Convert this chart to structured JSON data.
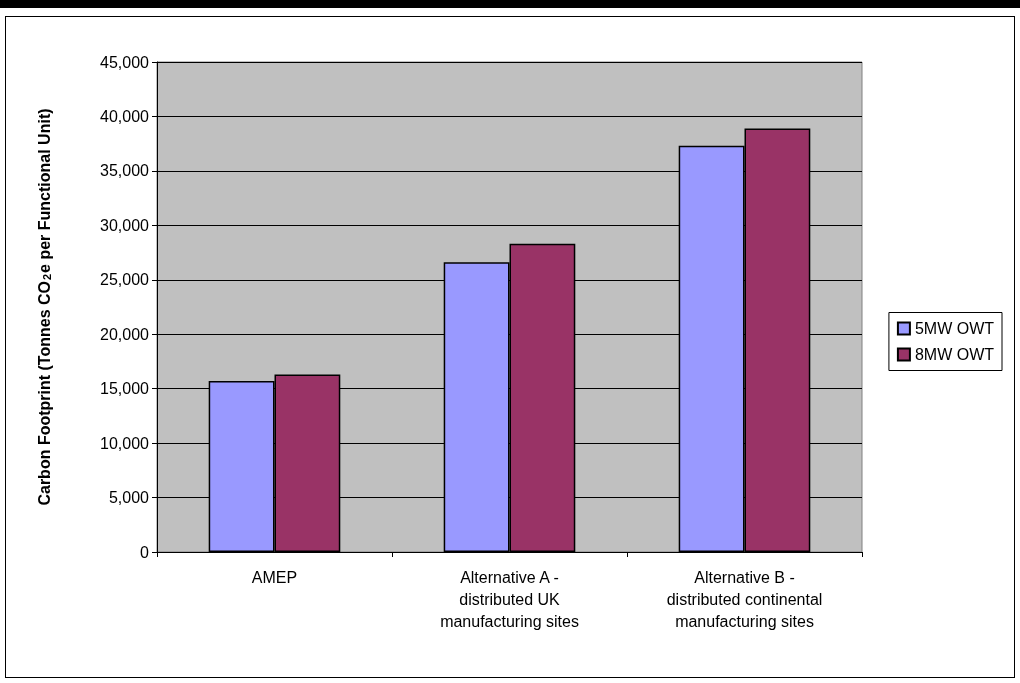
{
  "chart_data": {
    "type": "bar",
    "ylabel": "Carbon Footprint (Tonnes CO$_{2}$e per Functional Unit)",
    "categories": [
      "AMEP",
      "Alternative A -\ndistributed UK\nmanufacturing sites",
      "Alternative B -\ndistributed continental\nmanufacturing sites"
    ],
    "series": [
      {
        "name": "5MW OWT",
        "color": "#9999ff",
        "values": [
          15700,
          26600,
          37300
        ]
      },
      {
        "name": "8MW OWT",
        "color": "#993366",
        "values": [
          16300,
          28300,
          38900
        ]
      }
    ],
    "ylim": [
      0,
      45000
    ],
    "yticks": [
      0,
      {
        "value": 5000,
        "label": "5,000"
      },
      {
        "value": 10000,
        "label": "10,000"
      },
      {
        "value": 15000,
        "label": "15,000"
      },
      {
        "value": 20000,
        "label": "20,000"
      },
      {
        "value": 25000,
        "label": "25,000"
      },
      {
        "value": 30000,
        "label": "30,000"
      },
      {
        "value": 35000,
        "label": "35,000"
      },
      {
        "value": 40000,
        "label": "40,000"
      },
      {
        "value": 45000,
        "label": "45,000"
      }
    ],
    "grid": "y",
    "legend": "right"
  }
}
